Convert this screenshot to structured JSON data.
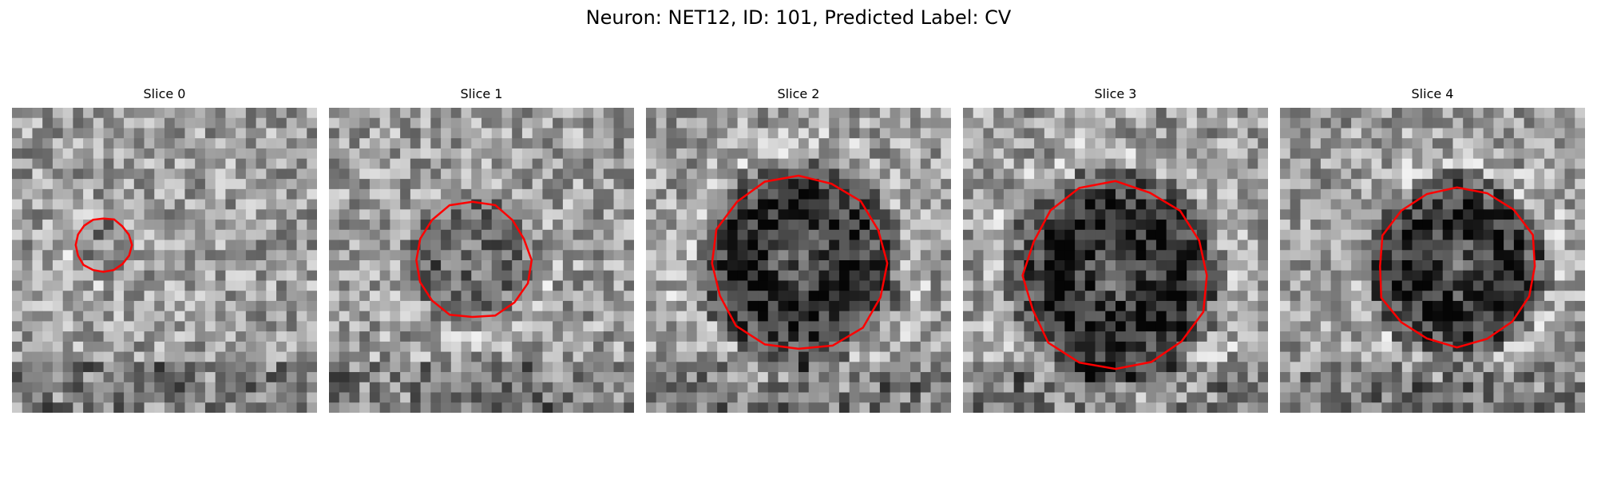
{
  "figure": {
    "title": "Neuron: NET12, ID: 101, Predicted Label: CV"
  },
  "colors": {
    "contour": "#ff0000",
    "background": "#ffffff"
  },
  "slices": [
    {
      "label": "Slice 0",
      "contour_radius": 0.09,
      "contour_center": [
        0.3,
        0.45
      ],
      "dark_blob_strength": 0.15,
      "seed": 11
    },
    {
      "label": "Slice 1",
      "contour_radius": 0.19,
      "contour_center": [
        0.47,
        0.5
      ],
      "dark_blob_strength": 0.3,
      "seed": 23
    },
    {
      "label": "Slice 2",
      "contour_radius": 0.29,
      "contour_center": [
        0.5,
        0.51
      ],
      "dark_blob_strength": 0.6,
      "seed": 37
    },
    {
      "label": "Slice 3",
      "contour_radius": 0.3,
      "contour_center": [
        0.5,
        0.55
      ],
      "dark_blob_strength": 0.65,
      "seed": 41
    },
    {
      "label": "Slice 4",
      "contour_radius": 0.26,
      "contour_center": [
        0.58,
        0.52
      ],
      "dark_blob_strength": 0.6,
      "seed": 53
    }
  ]
}
